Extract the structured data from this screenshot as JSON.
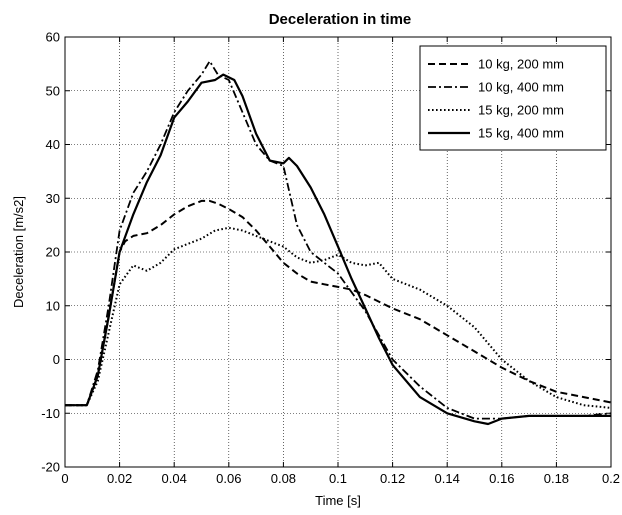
{
  "chart_data": {
    "type": "line",
    "title": "Deceleration in time",
    "xlabel": "Time [s]",
    "ylabel": "Deceleration [m/s2]",
    "xlim": [
      0,
      0.2
    ],
    "ylim": [
      -20,
      60
    ],
    "xticks": [
      0,
      0.02,
      0.04,
      0.06,
      0.08,
      0.1,
      0.12,
      0.14,
      0.16,
      0.18,
      0.2
    ],
    "xtick_labels": [
      "0",
      "0.02",
      "0.04",
      "0.06",
      "0.08",
      "0.1",
      "0.12",
      "0.14",
      "0.16",
      "0.18",
      "0.2"
    ],
    "yticks": [
      -20,
      -10,
      0,
      10,
      20,
      30,
      40,
      50,
      60
    ],
    "ytick_labels": [
      "-20",
      "-10",
      "0",
      "10",
      "20",
      "30",
      "40",
      "50",
      "60"
    ],
    "grid": true,
    "legend_position": "top-right",
    "series": [
      {
        "name": "10 kg, 200 mm",
        "style": "dashed",
        "x": [
          0,
          0.008,
          0.012,
          0.016,
          0.02,
          0.022,
          0.025,
          0.03,
          0.035,
          0.04,
          0.045,
          0.05,
          0.053,
          0.056,
          0.06,
          0.065,
          0.07,
          0.075,
          0.08,
          0.085,
          0.09,
          0.095,
          0.1,
          0.105,
          0.11,
          0.12,
          0.13,
          0.14,
          0.15,
          0.16,
          0.17,
          0.18,
          0.19,
          0.2
        ],
        "y": [
          -8.5,
          -8.5,
          -3,
          8,
          20,
          22,
          23,
          23.5,
          25,
          27,
          28.5,
          29.5,
          29.5,
          29,
          28,
          26.5,
          24,
          21,
          18,
          16,
          14.5,
          14,
          13.5,
          13,
          12,
          9.5,
          7.5,
          4.5,
          1.5,
          -1.5,
          -4,
          -6,
          -7,
          -8
        ]
      },
      {
        "name": "10 kg, 400 mm",
        "style": "dashdot",
        "x": [
          0,
          0.008,
          0.012,
          0.016,
          0.02,
          0.025,
          0.03,
          0.035,
          0.04,
          0.045,
          0.05,
          0.053,
          0.056,
          0.06,
          0.065,
          0.07,
          0.075,
          0.08,
          0.085,
          0.09,
          0.095,
          0.1,
          0.11,
          0.12,
          0.13,
          0.14,
          0.15,
          0.16,
          0.17,
          0.18,
          0.19,
          0.2
        ],
        "y": [
          -8.5,
          -8.5,
          -2,
          10,
          24,
          31,
          35,
          40,
          46,
          50,
          53,
          55.5,
          53,
          52,
          46,
          40,
          37,
          36,
          25,
          20,
          18,
          16,
          9,
          0,
          -5,
          -9,
          -11,
          -11,
          -10.5,
          -10.5,
          -10.5,
          -10
        ]
      },
      {
        "name": "15 kg, 200 mm",
        "style": "dotted",
        "x": [
          0,
          0.008,
          0.012,
          0.016,
          0.02,
          0.025,
          0.03,
          0.035,
          0.04,
          0.045,
          0.05,
          0.055,
          0.06,
          0.065,
          0.07,
          0.075,
          0.08,
          0.085,
          0.09,
          0.095,
          0.1,
          0.105,
          0.11,
          0.115,
          0.12,
          0.13,
          0.14,
          0.15,
          0.16,
          0.17,
          0.18,
          0.19,
          0.2
        ],
        "y": [
          -8.5,
          -8.5,
          -4,
          5,
          14,
          17.5,
          16.5,
          18,
          20.5,
          21.5,
          22.5,
          24,
          24.5,
          24,
          23,
          22,
          21,
          19,
          18,
          18.5,
          19.5,
          18,
          17.5,
          18,
          15,
          13,
          10,
          6,
          0,
          -4,
          -7,
          -8.5,
          -9
        ]
      },
      {
        "name": "15 kg, 400 mm",
        "style": "solid",
        "x": [
          0,
          0.008,
          0.012,
          0.016,
          0.02,
          0.025,
          0.03,
          0.035,
          0.04,
          0.045,
          0.05,
          0.055,
          0.058,
          0.062,
          0.065,
          0.07,
          0.075,
          0.08,
          0.082,
          0.085,
          0.09,
          0.095,
          0.1,
          0.105,
          0.11,
          0.115,
          0.12,
          0.13,
          0.14,
          0.15,
          0.155,
          0.16,
          0.17,
          0.18,
          0.19,
          0.2
        ],
        "y": [
          -8.5,
          -8.5,
          -3,
          8,
          20,
          27,
          33,
          38,
          45,
          48,
          51.5,
          52,
          53,
          52,
          49,
          42,
          37,
          36.5,
          37.5,
          36,
          32,
          27,
          21,
          15,
          9.5,
          4,
          -1,
          -7,
          -10,
          -11.5,
          -12,
          -11,
          -10.5,
          -10.5,
          -10.5,
          -10.5
        ]
      }
    ]
  }
}
